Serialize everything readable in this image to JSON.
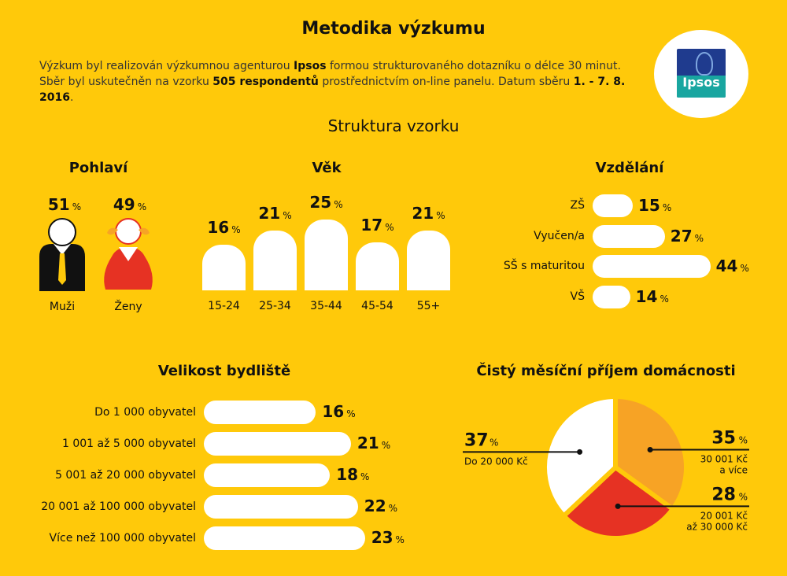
{
  "header": {
    "title": "Metodika výzkumu",
    "intro_l1_a": "Výzkum byl realizován výzkumnou agenturou ",
    "intro_l1_b": "Ipsos",
    "intro_l1_c": " formou strukturovaného dotazníku o délce 30 minut.",
    "intro_l2_a": "Sběr byl uskutečněn na vzorku ",
    "intro_l2_b": "505 respondentů",
    "intro_l2_c": " prostřednictvím on-line panelu. Datum sběru ",
    "intro_l2_d": "1. - 7. 8. 2016",
    "intro_l2_e": ".",
    "logo_text": "Ipsos",
    "subtitle": "Struktura vzorku"
  },
  "colors": {
    "background": "#FFC90A",
    "white": "#FFFFFF",
    "orange": "#F7A325",
    "red": "#E63223",
    "ipsos_blue": "#1F3B8E",
    "ipsos_teal": "#19A6A0"
  },
  "icons": {
    "male": "male-person-icon",
    "female": "female-person-icon",
    "logo": "ipsos-logo"
  },
  "percent_sign": "%",
  "chart_data": [
    {
      "type": "bar",
      "title": "Pohlaví",
      "categories": [
        "Muži",
        "Ženy"
      ],
      "values": [
        51,
        49
      ],
      "unit": "%"
    },
    {
      "type": "bar",
      "title": "Věk",
      "categories": [
        "15-24",
        "25-34",
        "35-44",
        "45-54",
        "55+"
      ],
      "values": [
        16,
        21,
        25,
        17,
        21
      ],
      "unit": "%"
    },
    {
      "type": "bar",
      "orientation": "horizontal",
      "title": "Vzdělání",
      "categories": [
        "ZŠ",
        "Vyučen/a",
        "SŠ s maturitou",
        "VŠ"
      ],
      "values": [
        15,
        27,
        44,
        14
      ],
      "unit": "%"
    },
    {
      "type": "bar",
      "orientation": "horizontal",
      "title": "Velikost bydliště",
      "categories": [
        "Do 1 000 obyvatel",
        "1 001 až 5 000 obyvatel",
        "5 001 až 20 000 obyvatel",
        "20 001 až 100 000 obyvatel",
        "Více než 100 000 obyvatel"
      ],
      "values": [
        16,
        21,
        18,
        22,
        23
      ],
      "unit": "%"
    },
    {
      "type": "pie",
      "title": "Čistý měsíční příjem domácnosti",
      "slices": [
        {
          "label_l1": "30 001 Kč",
          "label_l2": "a více",
          "value": 35,
          "color": "#F7A325"
        },
        {
          "label_l1": "20 001 Kč",
          "label_l2": "až 30 000 Kč",
          "value": 28,
          "color": "#E63223"
        },
        {
          "label_l1": "Do 20 000 Kč",
          "label_l2": "",
          "value": 37,
          "color": "#FFFFFF"
        }
      ],
      "unit": "%"
    }
  ]
}
